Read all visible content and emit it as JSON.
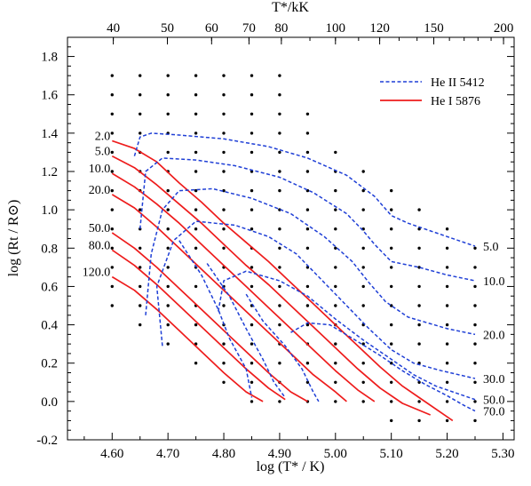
{
  "chart_data": {
    "type": "line",
    "xlabel": "log (T* / K)",
    "ylabel": "log (Rt / R⊙)",
    "top_xlabel": "T*/kK",
    "xlim": [
      4.52,
      5.32
    ],
    "ylim": [
      -0.2,
      1.9
    ],
    "x_ticks": [
      "4.60",
      "4.70",
      "4.80",
      "4.90",
      "5.00",
      "5.10",
      "5.20",
      "5.30"
    ],
    "y_ticks": [
      "-0.2",
      "0.0",
      "0.2",
      "0.4",
      "0.6",
      "0.8",
      "1.0",
      "1.2",
      "1.4",
      "1.6",
      "1.8"
    ],
    "top_ticks": [
      {
        "label": "40",
        "kK": 40
      },
      {
        "label": "50",
        "kK": 50
      },
      {
        "label": "60",
        "kK": 60
      },
      {
        "label": "70",
        "kK": 70
      },
      {
        "label": "80",
        "kK": 80
      },
      {
        "label": "100",
        "kK": 100
      },
      {
        "label": "120",
        "kK": 120
      },
      {
        "label": "150",
        "kK": 150
      },
      {
        "label": "200",
        "kK": 200
      }
    ],
    "legend": [
      {
        "label": "He II 5412",
        "color": "#1f3fd6",
        "style": "dashed"
      },
      {
        "label": "He I 5876",
        "color": "#ee1c1c",
        "style": "solid"
      }
    ],
    "series": [
      {
        "line": "He I 5876",
        "label": "2.0",
        "label_side": "left",
        "points": [
          [
            4.6,
            1.36
          ],
          [
            4.64,
            1.32
          ],
          [
            4.68,
            1.25
          ],
          [
            4.72,
            1.14
          ],
          [
            4.76,
            1.04
          ],
          [
            4.8,
            0.93
          ],
          [
            4.84,
            0.83
          ],
          [
            4.88,
            0.73
          ],
          [
            4.92,
            0.62
          ],
          [
            4.96,
            0.51
          ],
          [
            5.0,
            0.4
          ],
          [
            5.04,
            0.29
          ],
          [
            5.08,
            0.18
          ],
          [
            5.12,
            0.08
          ],
          [
            5.15,
            0.02
          ],
          [
            5.19,
            -0.06
          ],
          [
            5.21,
            -0.1
          ]
        ]
      },
      {
        "line": "He I 5876",
        "label": "5.0",
        "label_side": "left",
        "points": [
          [
            4.6,
            1.28
          ],
          [
            4.64,
            1.22
          ],
          [
            4.68,
            1.13
          ],
          [
            4.72,
            1.03
          ],
          [
            4.76,
            0.93
          ],
          [
            4.8,
            0.82
          ],
          [
            4.84,
            0.71
          ],
          [
            4.88,
            0.61
          ],
          [
            4.92,
            0.5
          ],
          [
            4.96,
            0.39
          ],
          [
            5.0,
            0.28
          ],
          [
            5.04,
            0.17
          ],
          [
            5.08,
            0.07
          ],
          [
            5.12,
            -0.01
          ],
          [
            5.17,
            -0.07
          ]
        ]
      },
      {
        "line": "He I 5876",
        "label": "10.0",
        "label_side": "left",
        "points": [
          [
            4.6,
            1.19
          ],
          [
            4.64,
            1.12
          ],
          [
            4.68,
            1.03
          ],
          [
            4.72,
            0.93
          ],
          [
            4.76,
            0.82
          ],
          [
            4.8,
            0.71
          ],
          [
            4.84,
            0.6
          ],
          [
            4.88,
            0.49
          ],
          [
            4.92,
            0.38
          ],
          [
            4.96,
            0.27
          ],
          [
            5.0,
            0.16
          ],
          [
            5.04,
            0.06
          ],
          [
            5.07,
            0.0
          ]
        ]
      },
      {
        "line": "He I 5876",
        "label": "20.0",
        "label_side": "left",
        "points": [
          [
            4.6,
            1.08
          ],
          [
            4.64,
            1.01
          ],
          [
            4.68,
            0.91
          ],
          [
            4.72,
            0.8
          ],
          [
            4.76,
            0.69
          ],
          [
            4.8,
            0.58
          ],
          [
            4.84,
            0.47
          ],
          [
            4.88,
            0.36
          ],
          [
            4.92,
            0.25
          ],
          [
            4.96,
            0.14
          ],
          [
            5.0,
            0.05
          ],
          [
            5.02,
            0.0
          ]
        ]
      },
      {
        "line": "He I 5876",
        "label": "50.0",
        "label_side": "left",
        "points": [
          [
            4.6,
            0.88
          ],
          [
            4.64,
            0.8
          ],
          [
            4.68,
            0.7
          ],
          [
            4.72,
            0.59
          ],
          [
            4.76,
            0.48
          ],
          [
            4.8,
            0.37
          ],
          [
            4.84,
            0.26
          ],
          [
            4.88,
            0.15
          ],
          [
            4.92,
            0.05
          ],
          [
            4.95,
            0.0
          ]
        ]
      },
      {
        "line": "He I 5876",
        "label": "80.0",
        "label_side": "left",
        "points": [
          [
            4.6,
            0.79
          ],
          [
            4.64,
            0.71
          ],
          [
            4.68,
            0.61
          ],
          [
            4.72,
            0.5
          ],
          [
            4.76,
            0.39
          ],
          [
            4.8,
            0.28
          ],
          [
            4.84,
            0.17
          ],
          [
            4.88,
            0.07
          ],
          [
            4.91,
            0.01
          ]
        ]
      },
      {
        "line": "He I 5876",
        "label": "120.0",
        "label_side": "left",
        "points": [
          [
            4.6,
            0.65
          ],
          [
            4.64,
            0.58
          ],
          [
            4.68,
            0.48
          ],
          [
            4.72,
            0.37
          ],
          [
            4.76,
            0.26
          ],
          [
            4.8,
            0.15
          ],
          [
            4.84,
            0.05
          ],
          [
            4.87,
            0.0
          ]
        ]
      },
      {
        "line": "He II 5412",
        "label": "5.0",
        "label_side": "right",
        "points": [
          [
            4.64,
            1.28
          ],
          [
            4.65,
            1.38
          ],
          [
            4.67,
            1.4
          ],
          [
            4.72,
            1.39
          ],
          [
            4.8,
            1.37
          ],
          [
            4.88,
            1.33
          ],
          [
            4.95,
            1.27
          ],
          [
            5.02,
            1.18
          ],
          [
            5.07,
            1.07
          ],
          [
            5.1,
            0.97
          ],
          [
            5.13,
            0.93
          ],
          [
            5.18,
            0.88
          ],
          [
            5.25,
            0.81
          ]
        ]
      },
      {
        "line": "He II 5412",
        "label": "10.0",
        "label_side": "right",
        "points": [
          [
            4.65,
            0.9
          ],
          [
            4.66,
            1.2
          ],
          [
            4.69,
            1.27
          ],
          [
            4.75,
            1.26
          ],
          [
            4.82,
            1.23
          ],
          [
            4.9,
            1.17
          ],
          [
            4.96,
            1.09
          ],
          [
            5.02,
            0.98
          ],
          [
            5.05,
            0.89
          ],
          [
            5.07,
            0.82
          ],
          [
            5.1,
            0.73
          ],
          [
            5.15,
            0.7
          ],
          [
            5.2,
            0.66
          ],
          [
            5.25,
            0.63
          ]
        ]
      },
      {
        "line": "He II 5412",
        "label": "20.0",
        "label_side": "right",
        "points": [
          [
            4.66,
            0.45
          ],
          [
            4.67,
            0.77
          ],
          [
            4.69,
            1.0
          ],
          [
            4.72,
            1.1
          ],
          [
            4.78,
            1.11
          ],
          [
            4.85,
            1.06
          ],
          [
            4.92,
            0.98
          ],
          [
            4.98,
            0.86
          ],
          [
            5.03,
            0.73
          ],
          [
            5.06,
            0.62
          ],
          [
            5.09,
            0.52
          ],
          [
            5.13,
            0.44
          ],
          [
            5.2,
            0.38
          ],
          [
            5.25,
            0.35
          ]
        ]
      },
      {
        "line": "He II 5412",
        "label": "30.0",
        "label_side": "right",
        "points": [
          [
            4.69,
            0.29
          ],
          [
            4.68,
            0.6
          ],
          [
            4.71,
            0.84
          ],
          [
            4.75,
            0.94
          ],
          [
            4.82,
            0.92
          ],
          [
            4.88,
            0.86
          ],
          [
            4.93,
            0.77
          ],
          [
            4.98,
            0.62
          ],
          [
            5.02,
            0.5
          ],
          [
            5.06,
            0.38
          ],
          [
            5.1,
            0.27
          ],
          [
            5.14,
            0.2
          ],
          [
            5.19,
            0.16
          ],
          [
            5.25,
            0.12
          ]
        ]
      },
      {
        "line": "He II 5412",
        "label": "50.0",
        "label_side": "right",
        "points": [
          [
            4.79,
            0.47
          ],
          [
            4.8,
            0.63
          ],
          [
            4.84,
            0.68
          ],
          [
            4.9,
            0.63
          ],
          [
            4.95,
            0.55
          ],
          [
            5.0,
            0.43
          ],
          [
            5.05,
            0.32
          ],
          [
            5.1,
            0.22
          ],
          [
            5.14,
            0.14
          ],
          [
            5.18,
            0.08
          ],
          [
            5.22,
            0.04
          ],
          [
            5.25,
            0.01
          ]
        ]
      },
      {
        "line": "He II 5412",
        "label": "70.0",
        "label_side": "right",
        "points": [
          [
            4.92,
            0.36
          ],
          [
            4.95,
            0.41
          ],
          [
            4.99,
            0.4
          ],
          [
            5.03,
            0.33
          ],
          [
            5.08,
            0.24
          ],
          [
            5.12,
            0.16
          ],
          [
            5.16,
            0.09
          ],
          [
            5.2,
            0.03
          ],
          [
            5.23,
            -0.02
          ],
          [
            5.25,
            -0.05
          ]
        ]
      },
      {
        "line": "He II 5412",
        "label": "",
        "label_side": "none",
        "points": [
          [
            4.72,
            0.84
          ],
          [
            4.76,
            0.66
          ],
          [
            4.79,
            0.48
          ],
          [
            4.81,
            0.33
          ],
          [
            4.84,
            0.17
          ],
          [
            4.85,
            0.02
          ]
        ]
      },
      {
        "line": "He II 5412",
        "label": "",
        "label_side": "none",
        "points": [
          [
            4.77,
            0.72
          ],
          [
            4.81,
            0.55
          ],
          [
            4.84,
            0.38
          ],
          [
            4.87,
            0.22
          ],
          [
            4.89,
            0.1
          ],
          [
            4.91,
            0.02
          ]
        ]
      },
      {
        "line": "He II 5412",
        "label": "",
        "label_side": "none",
        "points": [
          [
            4.84,
            0.56
          ],
          [
            4.87,
            0.42
          ],
          [
            4.91,
            0.29
          ],
          [
            4.94,
            0.17
          ],
          [
            4.96,
            0.05
          ],
          [
            4.97,
            0.0
          ]
        ]
      }
    ],
    "grid_models": [
      {
        "x": 4.6,
        "y_min": 0.5,
        "y_max": 1.7
      },
      {
        "x": 4.65,
        "y_min": 0.4,
        "y_max": 1.7
      },
      {
        "x": 4.7,
        "y_min": 0.3,
        "y_max": 1.7
      },
      {
        "x": 4.75,
        "y_min": 0.2,
        "y_max": 1.7
      },
      {
        "x": 4.8,
        "y_min": 0.1,
        "y_max": 1.7
      },
      {
        "x": 4.85,
        "y_min": 0.0,
        "y_max": 1.7
      },
      {
        "x": 4.9,
        "y_min": 0.0,
        "y_max": 1.7
      },
      {
        "x": 4.95,
        "y_min": 0.0,
        "y_max": 1.5
      },
      {
        "x": 5.0,
        "y_min": 0.0,
        "y_max": 1.3
      },
      {
        "x": 5.05,
        "y_min": 0.0,
        "y_max": 1.2
      },
      {
        "x": 5.1,
        "y_min": -0.1,
        "y_max": 1.1
      },
      {
        "x": 5.15,
        "y_min": -0.1,
        "y_max": 1.0
      },
      {
        "x": 5.2,
        "y_min": -0.1,
        "y_max": 0.9
      },
      {
        "x": 5.25,
        "y_min": -0.1,
        "y_max": 0.8
      }
    ],
    "grid_step": 0.1
  }
}
